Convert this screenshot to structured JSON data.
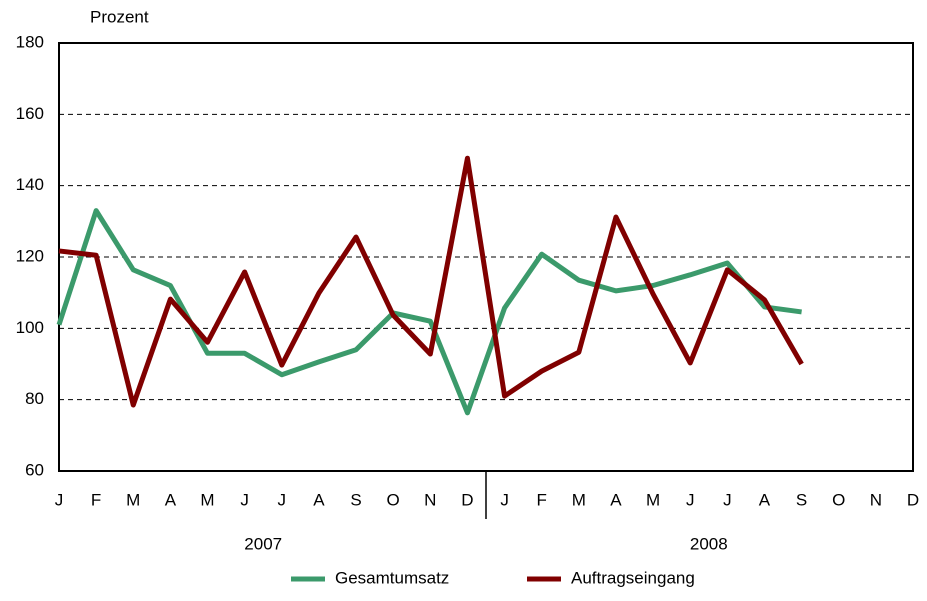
{
  "chart_data": {
    "type": "line",
    "y_axis_label": "Prozent",
    "categories": [
      "J",
      "F",
      "M",
      "A",
      "M",
      "J",
      "J",
      "A",
      "S",
      "O",
      "N",
      "D",
      "J",
      "F",
      "M",
      "A",
      "M",
      "J",
      "J",
      "A",
      "S",
      "O",
      "N",
      "D"
    ],
    "groups": [
      "2007",
      "2008"
    ],
    "series": [
      {
        "name": "Gesamtumsatz",
        "color": "#3b9a6b",
        "values": [
          101,
          133,
          116.4,
          112,
          93,
          93,
          87,
          90.6,
          94,
          104.3,
          102,
          76.3,
          105.7,
          120.8,
          113.5,
          110.5,
          112,
          115,
          118.3,
          106,
          104.6,
          null,
          null,
          null
        ]
      },
      {
        "name": "Auftragseingang",
        "color": "#800000",
        "values": [
          121.7,
          120.5,
          78.5,
          108.2,
          96.1,
          115.8,
          89.7,
          109.9,
          125.6,
          103.7,
          92.8,
          147.7,
          81,
          88,
          93.3,
          131.2,
          109.6,
          90.3,
          116.4,
          108,
          90,
          null,
          null,
          null
        ]
      }
    ],
    "ylim": [
      60,
      180
    ],
    "yticks": [
      60,
      80,
      100,
      120,
      140,
      160,
      180
    ],
    "grid": true
  }
}
